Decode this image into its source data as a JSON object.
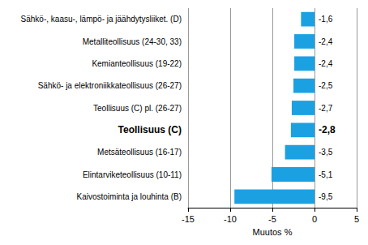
{
  "chart_data": {
    "type": "bar",
    "orientation": "horizontal",
    "categories": [
      "Sähkö-, kaasu-, lämpö- ja jäähdytysliiket. (D)",
      "Metalliteollisuus (24-30, 33)",
      "Kemianteollisuus (19-22)",
      "Sähkö- ja elektroniikkateollisuus (26-27)",
      "Teollisuus (C) pl. (26-27)",
      "Teollisuus (C)",
      "Metsäteollisuus (16-17)",
      "Elintarviketeollisuus (10-11)",
      "Kaivostoiminta ja louhinta (B)"
    ],
    "values": [
      -1.6,
      -2.4,
      -2.4,
      -2.5,
      -2.7,
      -2.8,
      -3.5,
      -5.1,
      -9.5
    ],
    "value_labels": [
      "-1,6",
      "-2,4",
      "-2,4",
      "-2,5",
      "-2,7",
      "-2,8",
      "-3,5",
      "-5,1",
      "-9,5"
    ],
    "data_labels": true,
    "color": "#1ba1e2",
    "x_label": "Muutos %",
    "xlim": [
      -15,
      5
    ],
    "xticks": [
      -15,
      -10,
      -5,
      0,
      5
    ],
    "grid": true
  }
}
